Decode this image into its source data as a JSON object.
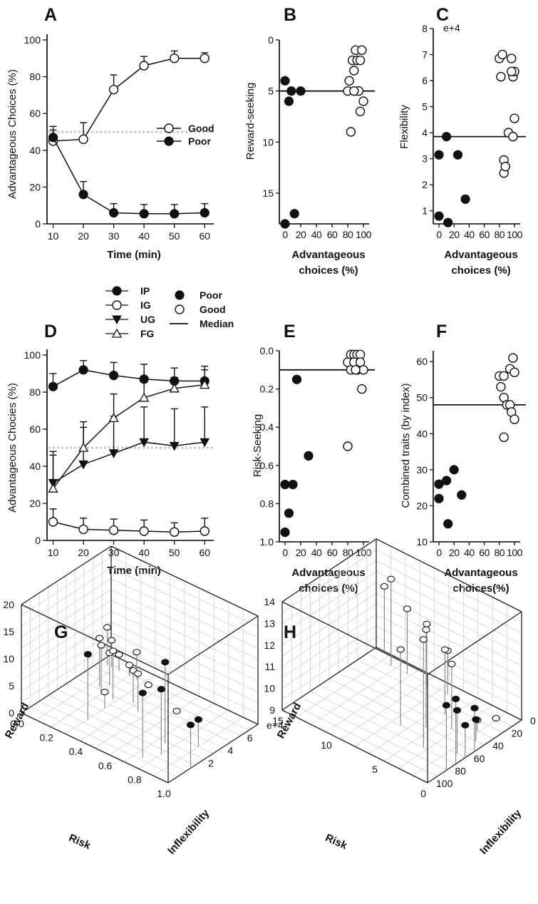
{
  "colors": {
    "filled": "#111111",
    "open": "#ffffff",
    "stroke": "#111111",
    "dotted": "#c8c8c8",
    "stem": "#8a8a8a"
  },
  "panels": {
    "A": {
      "label": "A",
      "ylabel": "Advantageous Choices (%)",
      "xlabel": "Time (min)",
      "xticks": [
        "10",
        "20",
        "30",
        "40",
        "50",
        "60"
      ],
      "yticks": [
        "0",
        "20",
        "40",
        "60",
        "80",
        "100"
      ],
      "legend": [
        "Good",
        "Poor"
      ]
    },
    "B": {
      "label": "B",
      "ylabel": "Reward-seeking",
      "xlabel1": "Advantageous",
      "xlabel2": "choices (%)",
      "xticks": [
        "0",
        "20",
        "40",
        "60",
        "80",
        "100"
      ],
      "yticks": [
        "0",
        "5",
        "10",
        "15"
      ]
    },
    "C": {
      "label": "C",
      "ylabel": "Flexibility",
      "exponent": "e+4",
      "xlabel1": "Advantageous",
      "xlabel2": "choices (%)",
      "xticks": [
        "0",
        "20",
        "40",
        "60",
        "80",
        "100"
      ],
      "yticks": [
        "1",
        "2",
        "3",
        "4",
        "5",
        "6",
        "7",
        "8"
      ]
    },
    "D": {
      "label": "D",
      "ylabel": "Advantageous Chocies (%)",
      "xlabel": "Time (min)",
      "xticks": [
        "10",
        "20",
        "30",
        "40",
        "50",
        "60"
      ],
      "yticks": [
        "0",
        "20",
        "40",
        "60",
        "80",
        "100"
      ]
    },
    "E": {
      "label": "E",
      "ylabel": "Risk-Seeking",
      "xlabel1": "Advantageous",
      "xlabel2": "choices (%)",
      "xticks": [
        "0",
        "20",
        "40",
        "60",
        "80",
        "100"
      ],
      "yticks": [
        "0.0",
        "0.2",
        "0.4",
        "0.6",
        "0.8",
        "1.0"
      ]
    },
    "F": {
      "label": "F",
      "ylabel": "Combined traits (by index)",
      "xlabel1": "Advantageous",
      "xlabel2": "choices(%)",
      "xticks": [
        "0",
        "20",
        "40",
        "60",
        "80",
        "100"
      ],
      "yticks": [
        "10",
        "20",
        "30",
        "40",
        "50",
        "60"
      ]
    },
    "G": {
      "label": "G",
      "axis_reward": "Reward",
      "axis_risk": "Risk",
      "axis_infl": "Inflexibility",
      "reward_ticks": [
        "0",
        "5",
        "10",
        "15",
        "20"
      ],
      "risk_ticks": [
        "0.0",
        "0.2",
        "0.4",
        "0.6",
        "0.8",
        "1.0"
      ],
      "infl_ticks": [
        "2",
        "4",
        "6",
        "e+4"
      ]
    },
    "H": {
      "label": "H",
      "axis_reward": "Reward",
      "axis_risk": "Risk",
      "axis_infl": "Inflexibility",
      "reward_ticks": [
        "9",
        "10",
        "11",
        "12",
        "13",
        "14"
      ],
      "risk_ticks": [
        "15",
        "10",
        "5",
        "0"
      ],
      "infl_ticks": [
        "0",
        "20",
        "40",
        "60",
        "80",
        "100"
      ]
    }
  },
  "legend_mid": {
    "groups": [
      "IP",
      "IG",
      "UG",
      "FG"
    ],
    "markers": [
      "Poor",
      "Good",
      "Median"
    ]
  },
  "chart_data": [
    {
      "id": "A",
      "type": "line",
      "title": "",
      "xlabel": "Time (min)",
      "ylabel": "Advantageous Choices (%)",
      "x": [
        10,
        20,
        30,
        40,
        50,
        60
      ],
      "xlim": [
        8,
        63
      ],
      "ylim": [
        0,
        100
      ],
      "reference_line": 50,
      "series": [
        {
          "name": "Good",
          "marker": "open",
          "values": [
            45,
            46,
            73,
            86,
            90,
            90
          ],
          "err": [
            6,
            9,
            8,
            5,
            4,
            3
          ]
        },
        {
          "name": "Poor",
          "marker": "filled",
          "values": [
            47,
            16,
            6,
            5.5,
            5.5,
            6
          ],
          "err": [
            6,
            7,
            5,
            5,
            5,
            5
          ]
        }
      ]
    },
    {
      "id": "B",
      "type": "scatter",
      "ylabel": "Reward-seeking",
      "xlabel": "Advantageous choices (%)",
      "xlim": [
        -5,
        105
      ],
      "ylim": [
        0,
        18
      ],
      "y_inverted": true,
      "median": 5,
      "points": [
        {
          "x": 0,
          "y": 4,
          "group": "Poor"
        },
        {
          "x": 5,
          "y": 6,
          "group": "Poor"
        },
        {
          "x": 8,
          "y": 5,
          "group": "Poor"
        },
        {
          "x": 20,
          "y": 5,
          "group": "Poor"
        },
        {
          "x": 12,
          "y": 17,
          "group": "Poor"
        },
        {
          "x": 0,
          "y": 18,
          "group": "Poor"
        },
        {
          "x": 82,
          "y": 4,
          "group": "Good"
        },
        {
          "x": 84,
          "y": 9,
          "group": "Good"
        },
        {
          "x": 80,
          "y": 5,
          "group": "Good"
        },
        {
          "x": 88,
          "y": 3,
          "group": "Good"
        },
        {
          "x": 86,
          "y": 2,
          "group": "Good"
        },
        {
          "x": 90,
          "y": 1,
          "group": "Good"
        },
        {
          "x": 92,
          "y": 2,
          "group": "Good"
        },
        {
          "x": 98,
          "y": 1,
          "group": "Good"
        },
        {
          "x": 96,
          "y": 2,
          "group": "Good"
        },
        {
          "x": 94,
          "y": 5,
          "group": "Good"
        },
        {
          "x": 96,
          "y": 7,
          "group": "Good"
        },
        {
          "x": 100,
          "y": 6,
          "group": "Good"
        },
        {
          "x": 88,
          "y": 5,
          "group": "Good"
        }
      ]
    },
    {
      "id": "C",
      "type": "scatter",
      "ylabel": "Flexibility",
      "xlabel": "Advantageous choices (%)",
      "xlim": [
        -5,
        105
      ],
      "ylim": [
        0.5,
        8
      ],
      "y_multiplier": "e+4",
      "median": 3.85,
      "points": [
        {
          "x": 0,
          "y": 3.15,
          "group": "Poor"
        },
        {
          "x": 10,
          "y": 3.85,
          "group": "Poor"
        },
        {
          "x": 25,
          "y": 3.15,
          "group": "Poor"
        },
        {
          "x": 0,
          "y": 0.8,
          "group": "Poor"
        },
        {
          "x": 12,
          "y": 0.55,
          "group": "Poor"
        },
        {
          "x": 35,
          "y": 1.45,
          "group": "Poor"
        },
        {
          "x": 80,
          "y": 6.85,
          "group": "Good"
        },
        {
          "x": 84,
          "y": 7.0,
          "group": "Good"
        },
        {
          "x": 82,
          "y": 6.15,
          "group": "Good"
        },
        {
          "x": 96,
          "y": 6.85,
          "group": "Good"
        },
        {
          "x": 98,
          "y": 6.15,
          "group": "Good"
        },
        {
          "x": 100,
          "y": 6.35,
          "group": "Good"
        },
        {
          "x": 96,
          "y": 6.35,
          "group": "Good"
        },
        {
          "x": 92,
          "y": 4.0,
          "group": "Good"
        },
        {
          "x": 98,
          "y": 3.85,
          "group": "Good"
        },
        {
          "x": 100,
          "y": 4.55,
          "group": "Good"
        },
        {
          "x": 86,
          "y": 2.95,
          "group": "Good"
        },
        {
          "x": 86,
          "y": 2.45,
          "group": "Good"
        },
        {
          "x": 88,
          "y": 2.7,
          "group": "Good"
        }
      ]
    },
    {
      "id": "D",
      "type": "line",
      "xlabel": "Time (min)",
      "ylabel": "Advantageous Chocies (%)",
      "x": [
        10,
        20,
        30,
        40,
        50,
        60
      ],
      "xlim": [
        8,
        63
      ],
      "ylim": [
        0,
        100
      ],
      "reference_line": 50,
      "series": [
        {
          "name": "IP",
          "marker": "filled-circle",
          "values": [
            83,
            92,
            89,
            87,
            86,
            86
          ],
          "err": [
            7,
            5,
            7,
            8,
            7,
            8
          ]
        },
        {
          "name": "IG",
          "marker": "open-circle",
          "values": [
            10,
            6,
            5.5,
            5,
            4.5,
            5
          ],
          "err": [
            7,
            6,
            6,
            6,
            5,
            7
          ]
        },
        {
          "name": "UG",
          "marker": "filled-triangle-down",
          "values": [
            31,
            41,
            47,
            53,
            51,
            53
          ],
          "err": [
            17,
            20,
            20,
            19,
            20,
            19
          ]
        },
        {
          "name": "FG",
          "marker": "open-triangle-up",
          "values": [
            28,
            50,
            66,
            77,
            82,
            84
          ],
          "err": [
            18,
            14,
            13,
            10,
            6,
            8
          ]
        }
      ]
    },
    {
      "id": "E",
      "type": "scatter",
      "ylabel": "Risk-Seeking",
      "xlabel": "Advantageous choices (%)",
      "xlim": [
        -5,
        105
      ],
      "ylim": [
        0,
        1
      ],
      "y_inverted": true,
      "median": 0.1,
      "points": [
        {
          "x": 0,
          "y": 0.7,
          "group": "Poor"
        },
        {
          "x": 10,
          "y": 0.7,
          "group": "Poor"
        },
        {
          "x": 5,
          "y": 0.85,
          "group": "Poor"
        },
        {
          "x": 0,
          "y": 0.95,
          "group": "Poor"
        },
        {
          "x": 15,
          "y": 0.15,
          "group": "Poor"
        },
        {
          "x": 30,
          "y": 0.55,
          "group": "Poor"
        },
        {
          "x": 80,
          "y": 0.5,
          "group": "Good"
        },
        {
          "x": 84,
          "y": 0.02,
          "group": "Good"
        },
        {
          "x": 88,
          "y": 0.02,
          "group": "Good"
        },
        {
          "x": 92,
          "y": 0.02,
          "group": "Good"
        },
        {
          "x": 96,
          "y": 0.02,
          "group": "Good"
        },
        {
          "x": 80,
          "y": 0.06,
          "group": "Good"
        },
        {
          "x": 84,
          "y": 0.1,
          "group": "Good"
        },
        {
          "x": 88,
          "y": 0.06,
          "group": "Good"
        },
        {
          "x": 92,
          "y": 0.1,
          "group": "Good"
        },
        {
          "x": 96,
          "y": 0.06,
          "group": "Good"
        },
        {
          "x": 100,
          "y": 0.1,
          "group": "Good"
        },
        {
          "x": 98,
          "y": 0.2,
          "group": "Good"
        },
        {
          "x": 90,
          "y": 0.1,
          "group": "Good"
        }
      ]
    },
    {
      "id": "F",
      "type": "scatter",
      "ylabel": "Combined traits (by index)",
      "xlabel": "Advantageous choices(%)",
      "xlim": [
        -5,
        105
      ],
      "ylim": [
        10,
        63
      ],
      "median": 48,
      "points": [
        {
          "x": 0,
          "y": 26,
          "group": "Poor"
        },
        {
          "x": 10,
          "y": 27,
          "group": "Poor"
        },
        {
          "x": 20,
          "y": 30,
          "group": "Poor"
        },
        {
          "x": 0,
          "y": 22,
          "group": "Poor"
        },
        {
          "x": 30,
          "y": 23,
          "group": "Poor"
        },
        {
          "x": 12,
          "y": 15,
          "group": "Poor"
        },
        {
          "x": 80,
          "y": 56,
          "group": "Good"
        },
        {
          "x": 86,
          "y": 56,
          "group": "Good"
        },
        {
          "x": 82,
          "y": 53,
          "group": "Good"
        },
        {
          "x": 86,
          "y": 50,
          "group": "Good"
        },
        {
          "x": 94,
          "y": 58,
          "group": "Good"
        },
        {
          "x": 98,
          "y": 61,
          "group": "Good"
        },
        {
          "x": 100,
          "y": 57,
          "group": "Good"
        },
        {
          "x": 90,
          "y": 48,
          "group": "Good"
        },
        {
          "x": 94,
          "y": 48,
          "group": "Good"
        },
        {
          "x": 96,
          "y": 46,
          "group": "Good"
        },
        {
          "x": 100,
          "y": 44,
          "group": "Good"
        },
        {
          "x": 86,
          "y": 39,
          "group": "Good"
        }
      ]
    },
    {
      "id": "G",
      "type": "scatter3d",
      "axes": [
        "Risk",
        "Inflexibility",
        "Reward"
      ],
      "xlim": [
        0,
        1
      ],
      "ylim": [
        8,
        0
      ],
      "zlim": [
        0,
        20
      ],
      "points": [
        {
          "x": 0.05,
          "y": 7,
          "z": 7,
          "group": "Good"
        },
        {
          "x": 0.08,
          "y": 7,
          "z": 5,
          "group": "Good"
        },
        {
          "x": 0.13,
          "y": 7,
          "z": 3,
          "group": "Good"
        },
        {
          "x": 0.2,
          "y": 7,
          "z": 2,
          "group": "Good"
        },
        {
          "x": 0.25,
          "y": 7,
          "z": 5,
          "group": "Good"
        },
        {
          "x": 0.33,
          "y": 7,
          "z": 0,
          "group": "Good"
        },
        {
          "x": 0.18,
          "y": 5.5,
          "z": 6,
          "group": "Good"
        },
        {
          "x": 0.15,
          "y": 5,
          "z": 9,
          "group": "Good"
        },
        {
          "x": 0.2,
          "y": 4.5,
          "z": 9,
          "group": "Good"
        },
        {
          "x": 0.28,
          "y": 4.5,
          "z": 9,
          "group": "Good"
        },
        {
          "x": 0.38,
          "y": 5,
          "z": 6,
          "group": "Good"
        },
        {
          "x": 0.45,
          "y": 4.5,
          "z": 7,
          "group": "Good"
        },
        {
          "x": 0.6,
          "y": 6,
          "z": 0,
          "group": "Good"
        },
        {
          "x": 0.3,
          "y": 3.5,
          "z": 3,
          "group": "Good"
        },
        {
          "x": 0.3,
          "y": 2,
          "z": 12,
          "group": "Poor"
        },
        {
          "x": 0.75,
          "y": 3,
          "z": 15,
          "group": "Poor"
        },
        {
          "x": 0.8,
          "y": 2,
          "z": 12,
          "group": "Poor"
        },
        {
          "x": 0.75,
          "y": 1,
          "z": 12,
          "group": "Poor"
        },
        {
          "x": 1.0,
          "y": 2,
          "z": 8,
          "group": "Poor"
        },
        {
          "x": 0.9,
          "y": 4,
          "z": 5,
          "group": "Poor"
        }
      ]
    },
    {
      "id": "H",
      "type": "scatter3d",
      "axes": [
        "Risk",
        "Inflexibility",
        "Reward"
      ],
      "xlim": [
        18,
        0
      ],
      "ylim": [
        100,
        0
      ],
      "zlim": [
        9,
        14
      ],
      "points": [
        {
          "x": 17,
          "y": 100,
          "z": 12,
          "group": "Good"
        },
        {
          "x": 15,
          "y": 90,
          "z": 13,
          "group": "Good"
        },
        {
          "x": 13,
          "y": 90,
          "z": 12,
          "group": "Good"
        },
        {
          "x": 10,
          "y": 85,
          "z": 12,
          "group": "Good"
        },
        {
          "x": 8,
          "y": 90,
          "z": 11,
          "group": "Good"
        },
        {
          "x": 6,
          "y": 70,
          "z": 12,
          "group": "Good"
        },
        {
          "x": 4,
          "y": 60,
          "z": 12,
          "group": "Good"
        },
        {
          "x": 6,
          "y": 50,
          "z": 13.5,
          "group": "Good"
        },
        {
          "x": 4,
          "y": 30,
          "z": 14,
          "group": "Good"
        },
        {
          "x": 8,
          "y": 40,
          "z": 12.5,
          "group": "Good"
        },
        {
          "x": 2,
          "y": 70,
          "z": 9.5,
          "group": "Good"
        },
        {
          "x": 2,
          "y": 90,
          "z": 9,
          "group": "Good"
        },
        {
          "x": 0,
          "y": 30,
          "z": 12,
          "group": "Poor"
        },
        {
          "x": 0,
          "y": 20,
          "z": 12,
          "group": "Poor"
        },
        {
          "x": 1,
          "y": 40,
          "z": 11,
          "group": "Poor"
        },
        {
          "x": 0,
          "y": 40,
          "z": 10.5,
          "group": "Poor"
        },
        {
          "x": 0,
          "y": 50,
          "z": 11,
          "group": "Poor"
        },
        {
          "x": 1,
          "y": 60,
          "z": 10,
          "group": "Poor"
        }
      ]
    }
  ]
}
